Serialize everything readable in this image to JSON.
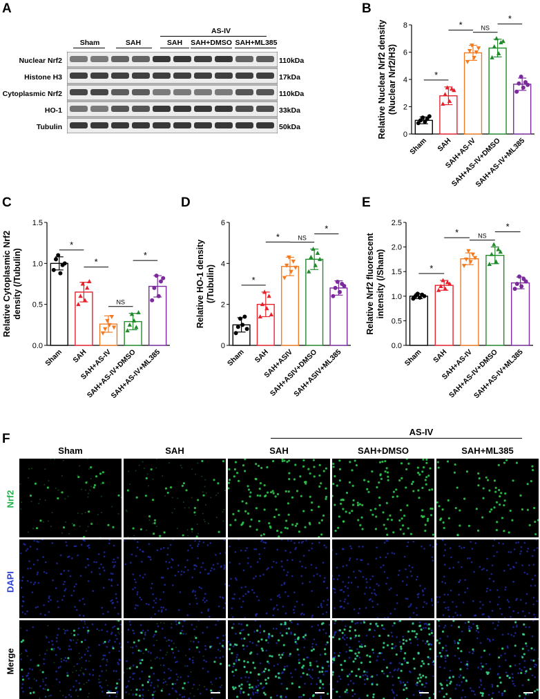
{
  "panels": {
    "A": "A",
    "B": "B",
    "C": "C",
    "D": "D",
    "E": "E",
    "F": "F"
  },
  "blot": {
    "group_headers": [
      "Sham",
      "SAH",
      "SAH",
      "SAH+DMSO",
      "SAH+ML385"
    ],
    "asiv_header": "AS-IV",
    "rows": [
      {
        "label": "Nuclear Nrf2",
        "kda": "110kDa"
      },
      {
        "label": "Histone H3",
        "kda": "17kDa"
      },
      {
        "label": "Cytoplasmic Nrf2",
        "kda": "110kDa"
      },
      {
        "label": "HO-1",
        "kda": "33kDa"
      },
      {
        "label": "Tubulin",
        "kda": "50kDa"
      }
    ]
  },
  "chart_data": [
    {
      "panel": "B",
      "type": "bar",
      "categories": [
        "Sham",
        "SAH",
        "SAH+AS-IV",
        "SAH+AS-IV+DMSO",
        "SAH+AS-IV+ML385"
      ],
      "values": [
        1.0,
        2.8,
        5.95,
        6.3,
        3.65
      ],
      "errors": [
        0.25,
        0.65,
        0.55,
        0.65,
        0.45
      ],
      "points": [
        [
          0.8,
          1.0,
          1.2,
          0.9,
          1.1,
          1.3
        ],
        [
          2.2,
          2.9,
          3.4,
          2.4,
          3.3,
          3.2
        ],
        [
          5.3,
          6.1,
          6.5,
          5.6,
          6.0,
          6.3
        ],
        [
          5.6,
          6.4,
          7.0,
          5.9,
          6.7,
          6.8
        ],
        [
          3.1,
          3.7,
          4.2,
          3.4,
          3.8,
          3.6
        ]
      ],
      "ylabel": "Relative  Nuclear Nrf2 density (Nuclear Nrf2/H3)",
      "ylim": [
        0,
        8
      ],
      "yticks": [
        0,
        2,
        4,
        6,
        8
      ],
      "colors": [
        "#000000",
        "#e8202a",
        "#f47a20",
        "#1f8a2a",
        "#7b2a9c"
      ],
      "sig": [
        "*",
        "*",
        "NS",
        "*"
      ]
    },
    {
      "panel": "C",
      "type": "bar",
      "categories": [
        "Sham",
        "SAH",
        "SAH+AS-IV",
        "SAH+AS-IV+DMSO",
        "SAH+AS-IV+ML385"
      ],
      "values": [
        1.0,
        0.65,
        0.26,
        0.29,
        0.72
      ],
      "errors": [
        0.08,
        0.12,
        0.1,
        0.1,
        0.13
      ],
      "points": [
        [
          0.92,
          1.05,
          1.1,
          0.88,
          0.98,
          1.0
        ],
        [
          0.5,
          0.6,
          0.75,
          0.55,
          0.7,
          0.78
        ],
        [
          0.15,
          0.2,
          0.3,
          0.25,
          0.35,
          0.22
        ],
        [
          0.18,
          0.25,
          0.38,
          0.3,
          0.22,
          0.4
        ],
        [
          0.55,
          0.7,
          0.85,
          0.6,
          0.78,
          0.82
        ]
      ],
      "ylabel": "Relative Cytoplasmic Nrf2 density (/Tubulin)",
      "ylim": [
        0,
        1.5
      ],
      "yticks": [
        0.0,
        0.5,
        1.0,
        1.5
      ],
      "colors": [
        "#000000",
        "#e8202a",
        "#f47a20",
        "#1f8a2a",
        "#7b2a9c"
      ],
      "sig": [
        "*",
        "*",
        "NS",
        "*"
      ]
    },
    {
      "panel": "D",
      "type": "bar",
      "categories": [
        "Sham",
        "SAH",
        "SAH+ASIV",
        "SAH+ASIV+DMSO",
        "SAH+ASIV+ML385"
      ],
      "values": [
        1.0,
        2.0,
        3.85,
        4.2,
        2.8
      ],
      "errors": [
        0.35,
        0.6,
        0.45,
        0.5,
        0.35
      ],
      "points": [
        [
          0.6,
          0.9,
          1.3,
          1.0,
          1.4,
          0.8
        ],
        [
          1.4,
          2.0,
          2.6,
          1.8,
          2.4,
          1.5
        ],
        [
          3.3,
          3.9,
          4.3,
          3.6,
          4.1,
          3.8
        ],
        [
          3.6,
          4.3,
          4.7,
          3.9,
          4.5,
          4.2
        ],
        [
          2.4,
          2.8,
          3.1,
          2.6,
          3.0,
          2.9
        ]
      ],
      "ylabel": "Relative HO-1 density (/Tubulin)",
      "ylim": [
        0,
        6
      ],
      "yticks": [
        0,
        2,
        4,
        6
      ],
      "colors": [
        "#000000",
        "#e8202a",
        "#f47a20",
        "#1f8a2a",
        "#7b2a9c"
      ],
      "sig": [
        "*",
        "*",
        "NS",
        "*"
      ]
    },
    {
      "panel": "E",
      "type": "bar",
      "categories": [
        "Sham",
        "SAH",
        "SAH+AS-IV",
        "SAH+AS-IV+DMSO",
        "SAH+AS-IV+ML385"
      ],
      "values": [
        1.0,
        1.22,
        1.76,
        1.83,
        1.27
      ],
      "errors": [
        0.05,
        0.1,
        0.12,
        0.17,
        0.12
      ],
      "points": [
        [
          0.95,
          1.0,
          1.05,
          0.97,
          1.03,
          1.0
        ],
        [
          1.12,
          1.2,
          1.32,
          1.15,
          1.28,
          1.25
        ],
        [
          1.62,
          1.75,
          1.92,
          1.7,
          1.85,
          1.78
        ],
        [
          1.65,
          1.85,
          2.05,
          1.7,
          1.95,
          1.9
        ],
        [
          1.15,
          1.25,
          1.4,
          1.2,
          1.35,
          1.3
        ]
      ],
      "ylabel": "Relative Nrf2 fluorescent intensity (/Sham)",
      "ylim": [
        0,
        2.5
      ],
      "yticks": [
        0.0,
        0.5,
        1.0,
        1.5,
        2.0,
        2.5
      ],
      "colors": [
        "#000000",
        "#e8202a",
        "#f47a20",
        "#1f8a2a",
        "#7b2a9c"
      ],
      "sig": [
        "*",
        "*",
        "NS",
        "*"
      ]
    }
  ],
  "micrographs": {
    "asiv_header": "AS-IV",
    "columns": [
      "Sham",
      "SAH",
      "SAH",
      "SAH+DMSO",
      "SAH+ML385"
    ],
    "rows": [
      "Nrf2",
      "DAPI",
      "Merge"
    ],
    "row_colors": [
      "#22b24c",
      "#2a3dd6",
      "#000000"
    ],
    "nrf2_density": [
      0.15,
      0.2,
      0.75,
      0.8,
      0.45
    ]
  }
}
